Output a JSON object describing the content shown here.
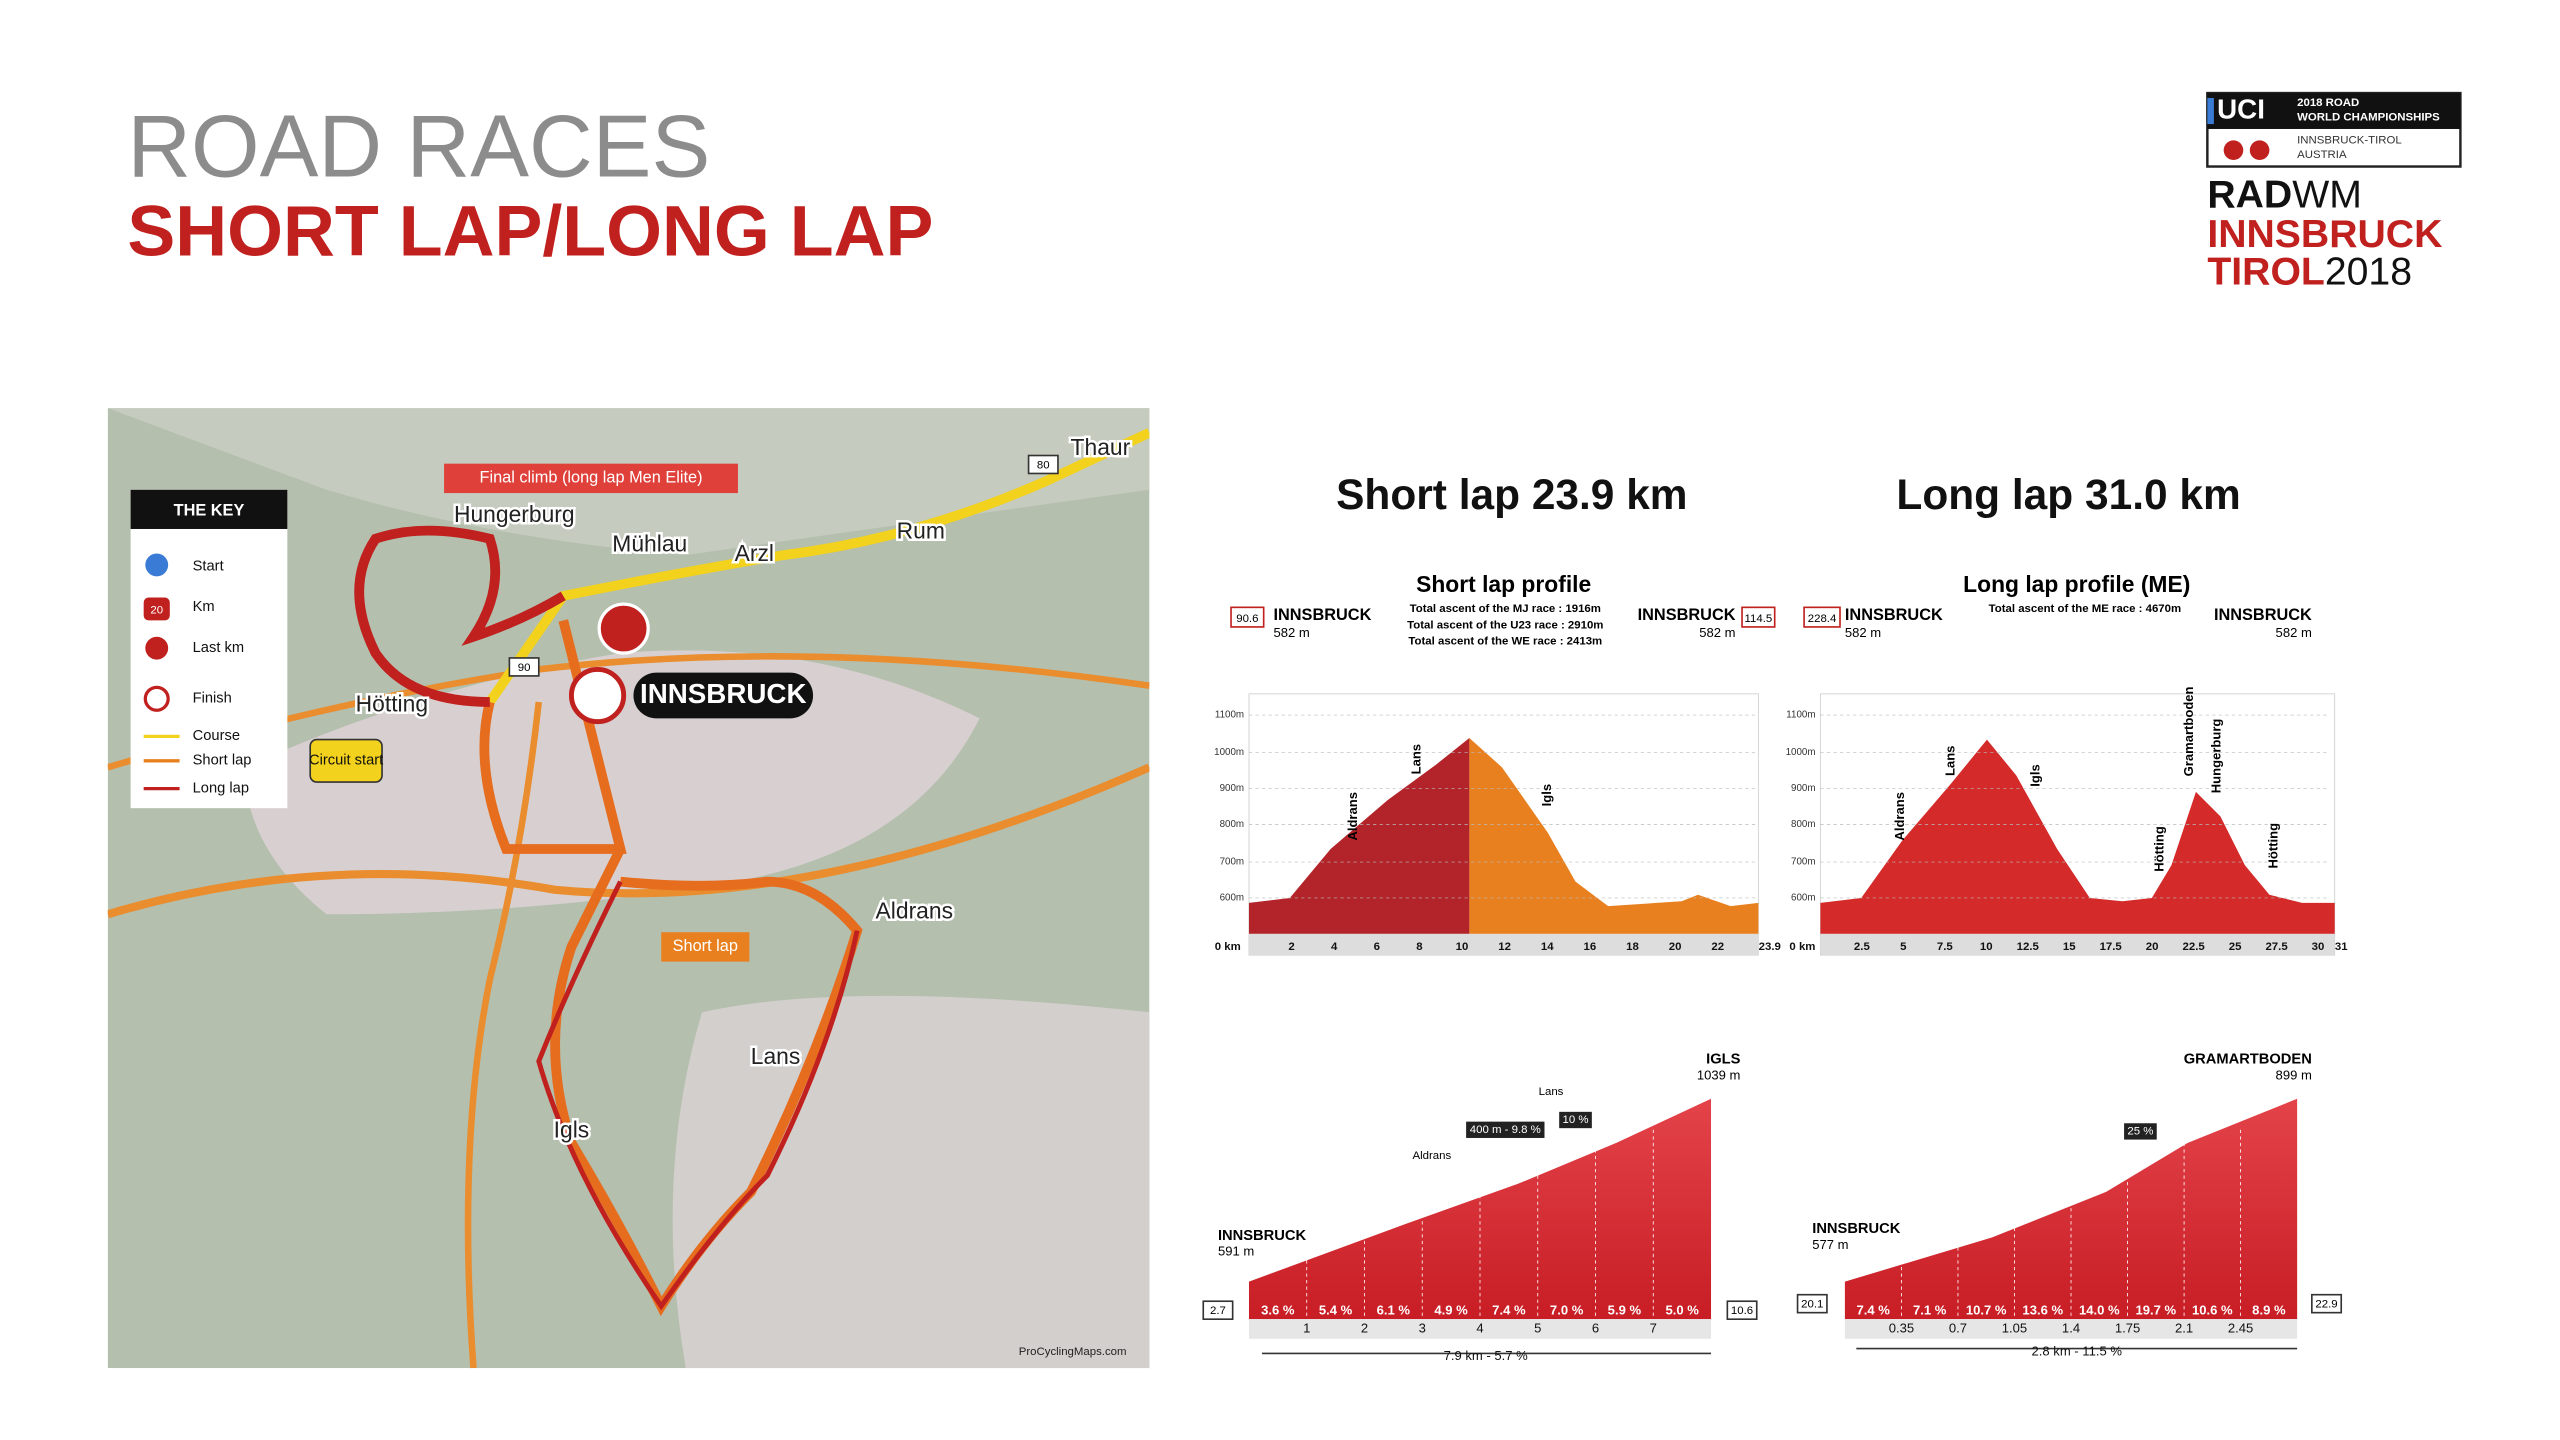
{
  "header": {
    "title": "ROAD RACES",
    "subtitle": "SHORT LAP/LONG LAP"
  },
  "logo": {
    "uci": "UCI",
    "line1": "2018 ROAD",
    "line2": "WORLD CHAMPIONSHIPS",
    "line3": "INNSBRUCK-TIROL",
    "line4": "AUSTRIA",
    "rad": "RAD",
    "wm": "WM",
    "innsbruck": "INNSBRUCK",
    "tirol": "TIROL",
    "year": "2018"
  },
  "map": {
    "key": {
      "title": "THE KEY",
      "items": [
        "Start",
        "Km",
        "Last km",
        "Finish",
        "Course",
        "Short lap",
        "Long lap"
      ],
      "km_badge": "20"
    },
    "places": [
      "Thaur",
      "Hungerburg",
      "Mühlau",
      "Arzl",
      "Rum",
      "Hötting",
      "Aldrans",
      "Lans",
      "Igls"
    ],
    "city": "INNSBRUCK",
    "final_climb": "Final climb (long lap Men Elite)",
    "circuit_start": "Circuit start",
    "short_lap": "Short lap",
    "roads": [
      "80",
      "90"
    ],
    "credit": "ProCyclingMaps.com"
  },
  "short_profile": {
    "heading": "Short lap 23.9 km",
    "title": "Short lap profile",
    "notes": [
      "Total ascent of the MJ race : 1916m",
      "Total ascent of the U23 race : 2910m",
      "Total ascent of the WE race : 2413m"
    ],
    "start_km": "90.6",
    "start": "INNSBRUCK",
    "start_alt": "582 m",
    "end_km": "114.5",
    "end": "INNSBRUCK",
    "end_alt": "582 m",
    "yticks": [
      "1100m",
      "1000m",
      "900m",
      "800m",
      "700m",
      "600m"
    ],
    "xticks": [
      "0 km",
      "2",
      "4",
      "6",
      "8",
      "10",
      "12",
      "14",
      "16",
      "18",
      "20",
      "22",
      "23.9"
    ],
    "climbs": [
      "Aldrans",
      "Lans",
      "Igls"
    ]
  },
  "long_profile": {
    "heading": "Long lap 31.0 km",
    "title": "Long lap profile (ME)",
    "notes": [
      "Total ascent of the ME race : 4670m"
    ],
    "start_km": "228.4",
    "start": "INNSBRUCK",
    "start_alt": "582 m",
    "end": "INNSBRUCK",
    "end_alt": "582 m",
    "yticks": [
      "1100m",
      "1000m",
      "900m",
      "800m",
      "700m",
      "600m"
    ],
    "xticks": [
      "0 km",
      "2.5",
      "5",
      "7.5",
      "10",
      "12.5",
      "15",
      "17.5",
      "20",
      "22.5",
      "25",
      "27.5",
      "30",
      "31"
    ],
    "climbs": [
      "Aldrans",
      "Lans",
      "Igls",
      "Hötting",
      "Gramartboden",
      "Hungerburg",
      "Hötting"
    ]
  },
  "climb_igls": {
    "start": "INNSBRUCK",
    "start_alt": "591 m",
    "end": "IGLS",
    "end_alt": "1039 m",
    "start_km": "2.7",
    "end_km": "10.6",
    "grades": [
      "3.6 %",
      "5.4 %",
      "6.1 %",
      "4.9 %",
      "7.4 %",
      "7.0 %",
      "5.9 %",
      "5.0 %"
    ],
    "km": [
      "1",
      "2",
      "3",
      "4",
      "5",
      "6",
      "7"
    ],
    "labels": [
      "Aldrans",
      "Lans"
    ],
    "steep": [
      "400 m - 9.8 %",
      "10 %"
    ],
    "summary": "7.9 km - 5.7 %"
  },
  "climb_gramartboden": {
    "start": "INNSBRUCK",
    "start_alt": "577 m",
    "end": "GRAMARTBODEN",
    "end_alt": "899 m",
    "start_km": "20.1",
    "end_km": "22.9",
    "grades": [
      "7.4 %",
      "7.1 %",
      "10.7 %",
      "13.6 %",
      "14.0 %",
      "19.7 %",
      "10.6 %",
      "8.9 %"
    ],
    "km": [
      "0.35",
      "0.7",
      "1.05",
      "1.4",
      "1.75",
      "2.1",
      "2.45"
    ],
    "steep": [
      "25 %"
    ],
    "summary": "2.8 km - 11.5 %"
  }
}
